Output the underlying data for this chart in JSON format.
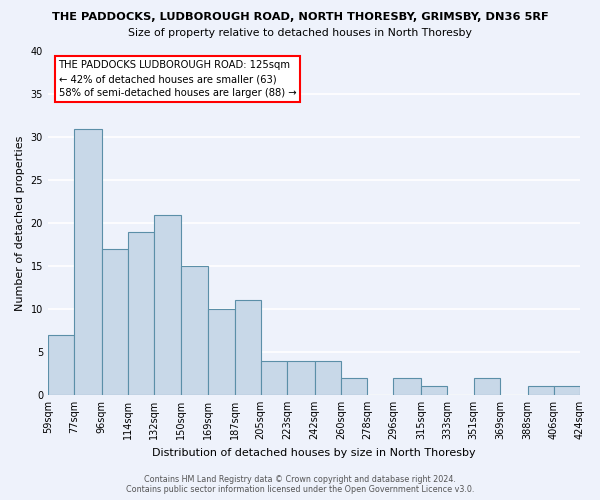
{
  "title": "THE PADDOCKS, LUDBOROUGH ROAD, NORTH THORESBY, GRIMSBY, DN36 5RF",
  "subtitle": "Size of property relative to detached houses in North Thoresby",
  "xlabel": "Distribution of detached houses by size in North Thoresby",
  "ylabel": "Number of detached properties",
  "bar_color": "#c8d8e8",
  "bar_edge_color": "#5b8fa8",
  "background_color": "#eef2fb",
  "grid_color": "white",
  "bins": [
    59,
    77,
    96,
    114,
    132,
    150,
    169,
    187,
    205,
    223,
    242,
    260,
    278,
    296,
    315,
    333,
    351,
    369,
    388,
    406,
    424
  ],
  "bin_labels": [
    "59sqm",
    "77sqm",
    "96sqm",
    "114sqm",
    "132sqm",
    "150sqm",
    "169sqm",
    "187sqm",
    "205sqm",
    "223sqm",
    "242sqm",
    "260sqm",
    "278sqm",
    "296sqm",
    "315sqm",
    "333sqm",
    "351sqm",
    "369sqm",
    "388sqm",
    "406sqm",
    "424sqm"
  ],
  "counts": [
    7,
    31,
    17,
    19,
    21,
    15,
    10,
    11,
    4,
    4,
    4,
    2,
    0,
    2,
    1,
    0,
    2,
    0,
    1,
    1
  ],
  "ylim": [
    0,
    40
  ],
  "yticks": [
    0,
    5,
    10,
    15,
    20,
    25,
    30,
    35,
    40
  ],
  "annotation_title": "THE PADDOCKS LUDBOROUGH ROAD: 125sqm",
  "annotation_line1": "← 42% of detached houses are smaller (63)",
  "annotation_line2": "58% of semi-detached houses are larger (88) →",
  "footer1": "Contains HM Land Registry data © Crown copyright and database right 2024.",
  "footer2": "Contains public sector information licensed under the Open Government Licence v3.0."
}
